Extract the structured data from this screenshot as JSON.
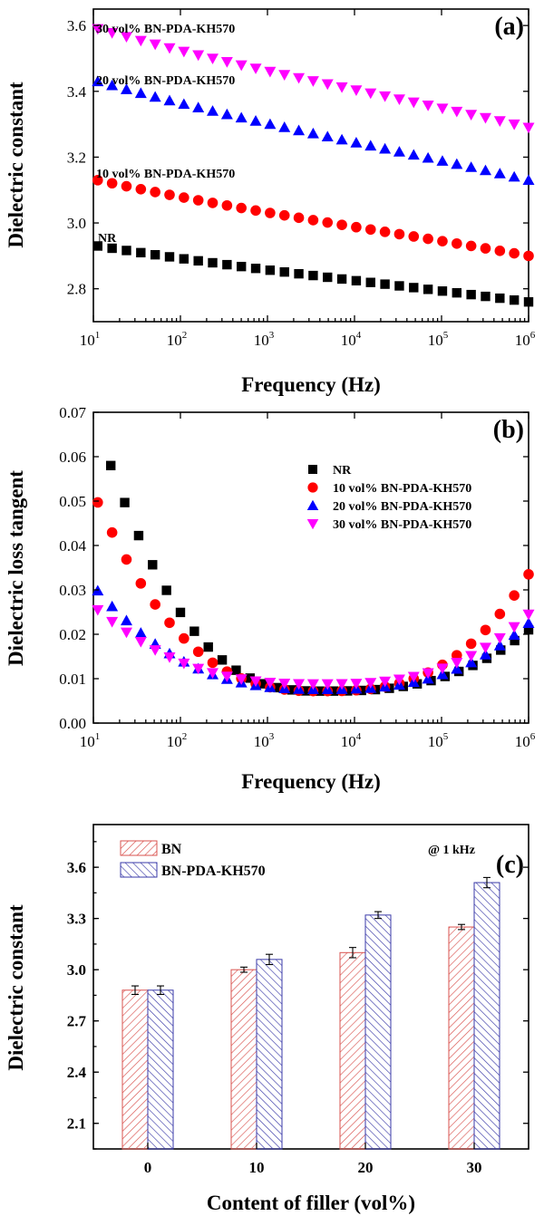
{
  "chart_data": [
    {
      "panel": "(a)",
      "type": "scatter",
      "xscale": "log",
      "xlabel": "Frequency (Hz)",
      "ylabel": "Dielectric constant",
      "xlim": [
        10,
        1000000
      ],
      "ylim": [
        2.7,
        3.65
      ],
      "yticks": [
        "2.8",
        "3.0",
        "3.2",
        "3.4",
        "3.6"
      ],
      "xticks": [
        {
          "base": "10",
          "exp": "1"
        },
        {
          "base": "10",
          "exp": "2"
        },
        {
          "base": "10",
          "exp": "3"
        },
        {
          "base": "10",
          "exp": "4"
        },
        {
          "base": "10",
          "exp": "5"
        },
        {
          "base": "10",
          "exp": "6"
        }
      ],
      "series": [
        {
          "name": "NR",
          "marker": "square",
          "color": "#000000",
          "start": 2.93,
          "end": 2.76
        },
        {
          "name": "10 vol% BN-PDA-KH570",
          "marker": "circle",
          "color": "#ff0000",
          "start": 3.13,
          "end": 2.9
        },
        {
          "name": "20 vol% BN-PDA-KH570",
          "marker": "triangle-up",
          "color": "#0000ff",
          "start": 3.43,
          "end": 3.13
        },
        {
          "name": "30 vol% BN-PDA-KH570",
          "marker": "triangle-down",
          "color": "#ff00ff",
          "start": 3.59,
          "end": 3.29
        }
      ]
    },
    {
      "panel": "(b)",
      "type": "scatter",
      "xscale": "log",
      "xlabel": "Frequency (Hz)",
      "ylabel": "Dielectric loss tangent",
      "xlim": [
        10,
        1000000
      ],
      "ylim": [
        0.0,
        0.07
      ],
      "yticks": [
        "0.00",
        "0.01",
        "0.02",
        "0.03",
        "0.04",
        "0.05",
        "0.06",
        "0.07"
      ],
      "xticks": [
        {
          "base": "10",
          "exp": "1"
        },
        {
          "base": "10",
          "exp": "2"
        },
        {
          "base": "10",
          "exp": "3"
        },
        {
          "base": "10",
          "exp": "4"
        },
        {
          "base": "10",
          "exp": "5"
        },
        {
          "base": "10",
          "exp": "6"
        }
      ],
      "series": [
        {
          "name": "NR",
          "marker": "square",
          "color": "#000000",
          "start": 0.058,
          "min": 0.0072,
          "end": 0.021
        },
        {
          "name": "10 vol% BN-PDA-KH570",
          "marker": "circle",
          "color": "#ff0000",
          "start": 0.0497,
          "min": 0.0072,
          "end": 0.0335
        },
        {
          "name": "20 vol% BN-PDA-KH570",
          "marker": "triangle-up",
          "color": "#0000ff",
          "start": 0.0298,
          "min": 0.0076,
          "end": 0.0225
        },
        {
          "name": "30 vol% BN-PDA-KH570",
          "marker": "triangle-down",
          "color": "#ff00ff",
          "start": 0.0255,
          "min": 0.0088,
          "end": 0.0245
        }
      ],
      "legend_position": "upper-right"
    },
    {
      "panel": "(c)",
      "type": "bar",
      "xlabel": "Content of filler (vol%)",
      "ylabel": "Dielectric constant",
      "categories": [
        "0",
        "10",
        "20",
        "30"
      ],
      "ylim": [
        1.95,
        3.85
      ],
      "yticks": [
        "2.1",
        "2.4",
        "2.7",
        "3.0",
        "3.3",
        "3.6"
      ],
      "annotation": "@ 1 kHz",
      "series": [
        {
          "name": "BN",
          "color": "#d9534f",
          "values": [
            2.88,
            3.0,
            3.1,
            3.25
          ],
          "errors": [
            0.025,
            0.015,
            0.03,
            0.015
          ]
        },
        {
          "name": "BN-PDA-KH570",
          "color": "#3a3aa8",
          "values": [
            2.88,
            3.06,
            3.32,
            3.51
          ],
          "errors": [
            0.025,
            0.03,
            0.02,
            0.03
          ]
        }
      ]
    }
  ]
}
